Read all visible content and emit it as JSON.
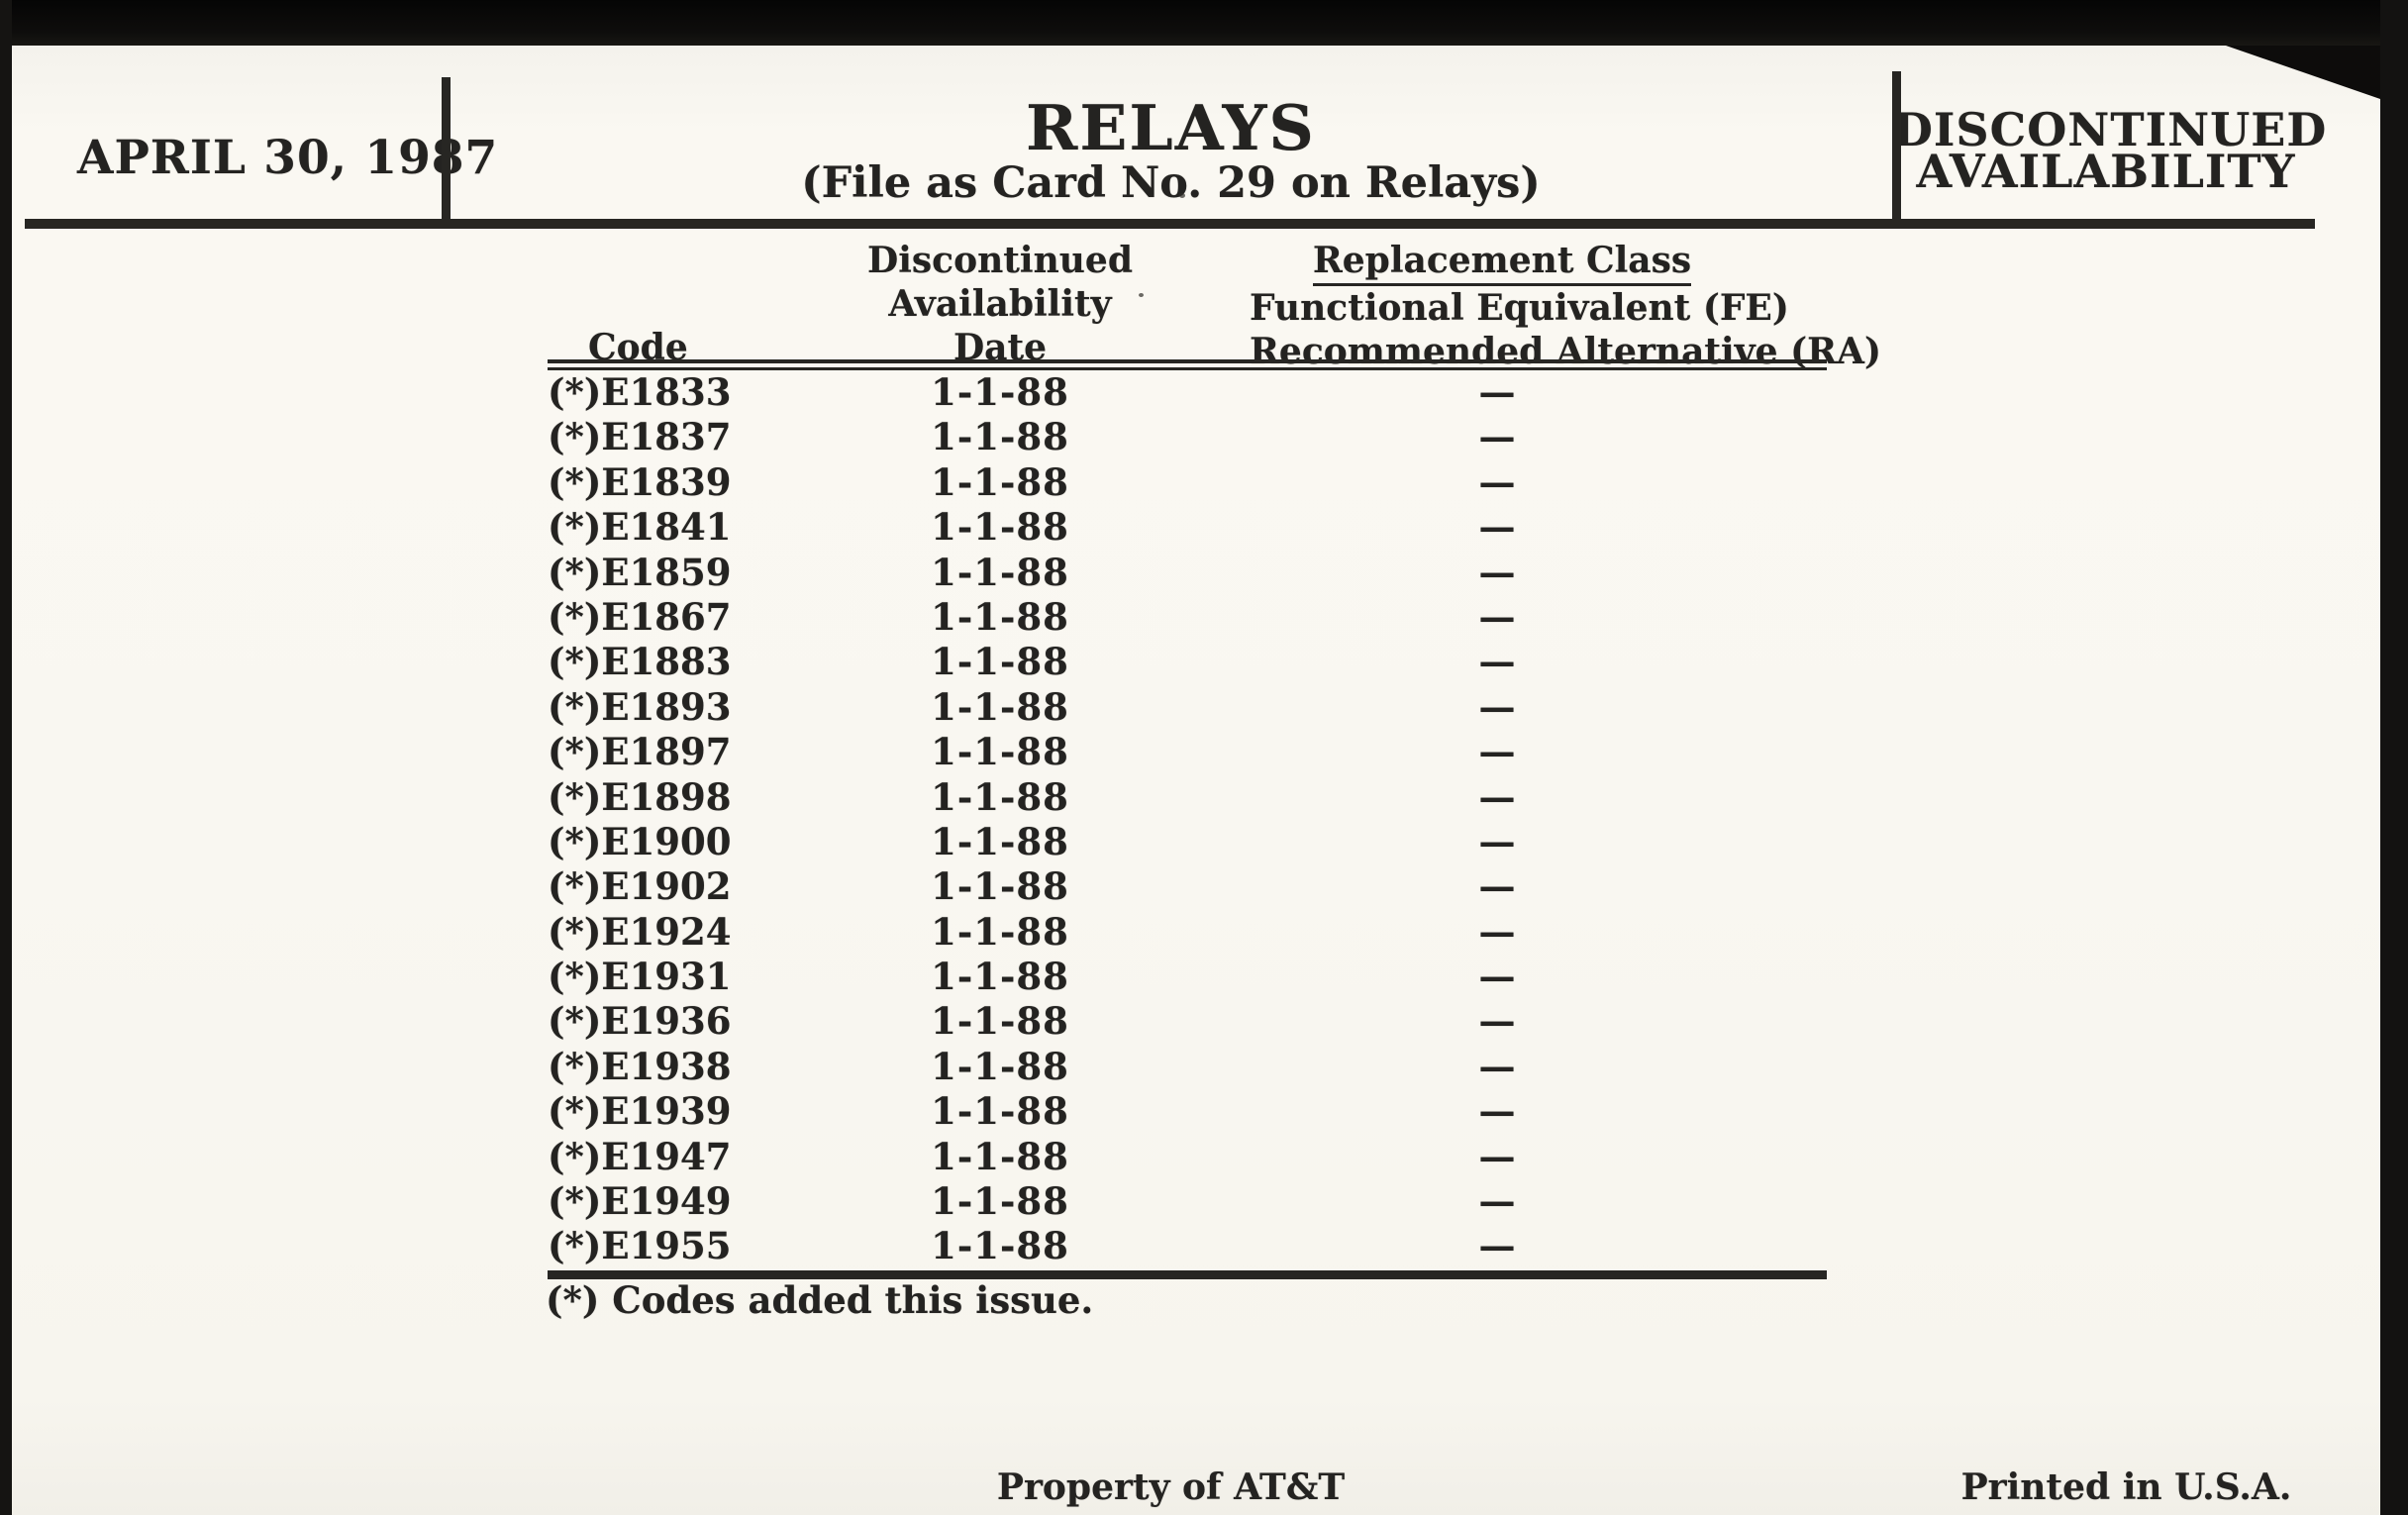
{
  "header": {
    "issue_date": "APRIL 30, 1987",
    "title": "RELAYS",
    "subtitle": "(File as Card No. 29 on Relays)",
    "banner_lines": [
      "DISCONTINUED",
      "AVAILABILITY"
    ]
  },
  "table": {
    "col1_header": "Code",
    "col2_header_lines": [
      "Discontinued",
      "Availability",
      "Date"
    ],
    "col3_header_lines": [
      "Replacement Class",
      "Functional Equivalent (FE)",
      "Recommended Alternative (RA)"
    ],
    "rows": [
      {
        "code": "(*)E1833",
        "date": "1-1-88",
        "replacement": "—"
      },
      {
        "code": "(*)E1837",
        "date": "1-1-88",
        "replacement": "—"
      },
      {
        "code": "(*)E1839",
        "date": "1-1-88",
        "replacement": "—"
      },
      {
        "code": "(*)E1841",
        "date": "1-1-88",
        "replacement": "—"
      },
      {
        "code": "(*)E1859",
        "date": "1-1-88",
        "replacement": "—"
      },
      {
        "code": "(*)E1867",
        "date": "1-1-88",
        "replacement": "—"
      },
      {
        "code": "(*)E1883",
        "date": "1-1-88",
        "replacement": "—"
      },
      {
        "code": "(*)E1893",
        "date": "1-1-88",
        "replacement": "—"
      },
      {
        "code": "(*)E1897",
        "date": "1-1-88",
        "replacement": "—"
      },
      {
        "code": "(*)E1898",
        "date": "1-1-88",
        "replacement": "—"
      },
      {
        "code": "(*)E1900",
        "date": "1-1-88",
        "replacement": "—"
      },
      {
        "code": "(*)E1902",
        "date": "1-1-88",
        "replacement": "—"
      },
      {
        "code": "(*)E1924",
        "date": "1-1-88",
        "replacement": "—"
      },
      {
        "code": "(*)E1931",
        "date": "1-1-88",
        "replacement": "—"
      },
      {
        "code": "(*)E1936",
        "date": "1-1-88",
        "replacement": "—"
      },
      {
        "code": "(*)E1938",
        "date": "1-1-88",
        "replacement": "—"
      },
      {
        "code": "(*)E1939",
        "date": "1-1-88",
        "replacement": "—"
      },
      {
        "code": "(*)E1947",
        "date": "1-1-88",
        "replacement": "—"
      },
      {
        "code": "(*)E1949",
        "date": "1-1-88",
        "replacement": "—"
      },
      {
        "code": "(*)E1955",
        "date": "1-1-88",
        "replacement": "—"
      }
    ],
    "footnote": "(*) Codes added this issue."
  },
  "footer": {
    "center": "Property of AT&T",
    "right": "Printed in U.S.A."
  },
  "colors": {
    "ink": "#272623",
    "paper": "#f9f7f1",
    "scan_black": "#0b0b0a"
  }
}
